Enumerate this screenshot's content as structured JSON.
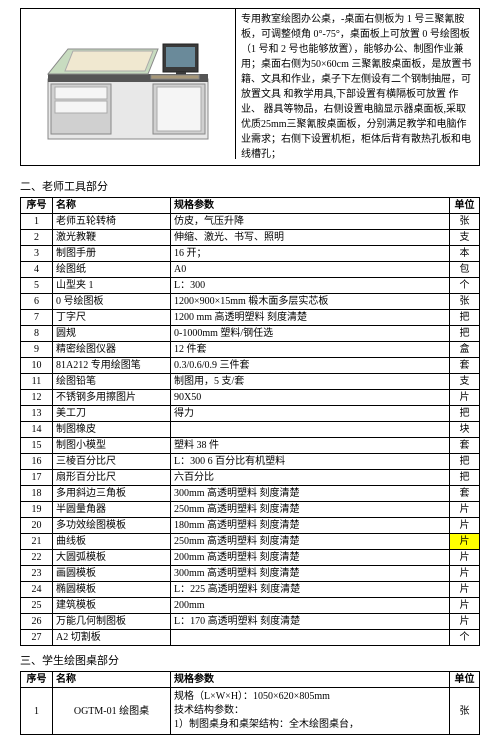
{
  "topDesc": "专用教室绘图办公桌，-桌面右侧板为 1 号三聚氰胺板，可调整倾角 0°-75°，桌面板上可放置 0 号绘图板（1 号和 2 号也能够放置），能够办公、制图作业兼用；桌面右侧为50×60cm 三聚氰胺桌面板，是放置书籍、文具和作业，桌子下左侧设有二个钢制抽屉，可放置文具 和教学用具,下部设置有横隔板可放置 作业、 器具等物品，右侧设置电脑显示器桌面板,采取优质25mm三聚氰胺桌面板，分别满足教学和电脑作业需求；右侧下设置机柜，柜体后背有散热孔板和电线槽孔；",
  "section2Title": "二、老师工具部分",
  "section3Title": "三、学生绘图桌部分",
  "headers": {
    "seq": "序号",
    "name": "名称",
    "spec": "规格参数",
    "unit": "单位"
  },
  "teacherRows": [
    {
      "seq": "1",
      "name": "老师五轮转椅",
      "spec": "仿皮，气压升降",
      "unit": "张"
    },
    {
      "seq": "2",
      "name": "激光教鞭",
      "spec": "伸缩、激光、书写、照明",
      "unit": "支"
    },
    {
      "seq": "3",
      "name": "制图手册",
      "spec": "16 开；",
      "unit": "本"
    },
    {
      "seq": "4",
      "name": "绘图纸",
      "spec": "A0",
      "unit": "包"
    },
    {
      "seq": "5",
      "name": "山型夹 1",
      "spec": "L：300",
      "unit": "个"
    },
    {
      "seq": "6",
      "name": "0 号绘图板",
      "spec": "1200×900×15mm 椴木面多层实芯板",
      "unit": "张"
    },
    {
      "seq": "7",
      "name": "丁字尺",
      "spec": "1200 mm 高透明塑料 刻度清楚",
      "unit": "把"
    },
    {
      "seq": "8",
      "name": "圆规",
      "spec": "0-1000mm  塑料/钢任选",
      "unit": "把"
    },
    {
      "seq": "9",
      "name": "精密绘图仪器",
      "spec": "12 件套",
      "unit": "盒"
    },
    {
      "seq": "10",
      "name": "81A212 专用绘图笔",
      "spec": "0.3/0.6/0.9 三件套",
      "unit": "套"
    },
    {
      "seq": "11",
      "name": "绘图铅笔",
      "spec": "制图用，5 支/套",
      "unit": "支"
    },
    {
      "seq": "12",
      "name": "不锈钢多用擦图片",
      "spec": "90X50",
      "unit": "片"
    },
    {
      "seq": "13",
      "name": "美工刀",
      "spec": "得力",
      "unit": "把"
    },
    {
      "seq": "14",
      "name": "制图橡皮",
      "spec": "",
      "unit": "块"
    },
    {
      "seq": "15",
      "name": "制图小模型",
      "spec": "塑料 38 件",
      "unit": "套"
    },
    {
      "seq": "16",
      "name": "三棱百分比尺",
      "spec": "L：300   6 百分比有机塑料",
      "unit": "把"
    },
    {
      "seq": "17",
      "name": "扇形百分比尺",
      "spec": "六百分比",
      "unit": "把"
    },
    {
      "seq": "18",
      "name": "多用斜边三角板",
      "spec": "300mm 高透明塑料 刻度清楚",
      "unit": "套"
    },
    {
      "seq": "19",
      "name": "半圆量角器",
      "spec": "250mm 高透明塑料 刻度清楚",
      "unit": "片"
    },
    {
      "seq": "20",
      "name": "多功效绘图模板",
      "spec": "180mm 高透明塑料 刻度清楚",
      "unit": "片"
    },
    {
      "seq": "21",
      "name": "曲线板",
      "spec": "250mm 高透明塑料 刻度清楚",
      "unit": "片",
      "hl": true
    },
    {
      "seq": "22",
      "name": "大圆弧模板",
      "spec": "200mm 高透明塑料 刻度清楚",
      "unit": "片"
    },
    {
      "seq": "23",
      "name": "画圆模板",
      "spec": "300mm 高透明塑料 刻度清楚",
      "unit": "片"
    },
    {
      "seq": "24",
      "name": "椭圆模板",
      "spec": "L：225 高透明塑料 刻度清楚",
      "unit": "片"
    },
    {
      "seq": "25",
      "name": "建筑模板",
      "spec": "200mm",
      "unit": "片"
    },
    {
      "seq": "26",
      "name": "万能几何制图板",
      "spec": "L：170 高透明塑料 刻度清楚",
      "unit": "片"
    },
    {
      "seq": "27",
      "name": "A2 切割板",
      "spec": "",
      "unit": "个"
    }
  ],
  "studentRow": {
    "seq": "1",
    "name": "OGTM-01 绘图桌",
    "spec": "规格（L×W×H）：1050×620×805mm\n技术结构参数：\n1）制图桌身和桌架结构：全木绘图桌台，",
    "unit": "张"
  }
}
